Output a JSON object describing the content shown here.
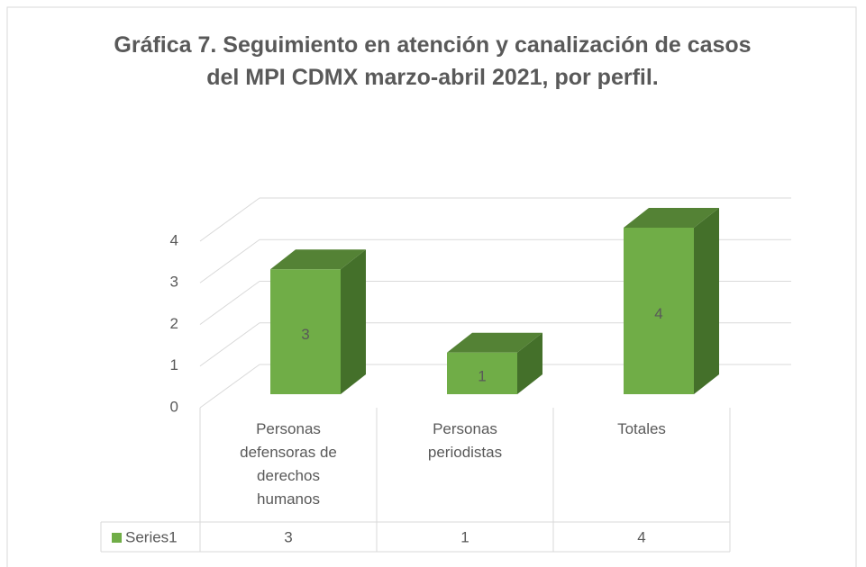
{
  "chart_data": {
    "type": "bar3d",
    "title": "Gráfica 7. Seguimiento en atención y canalización de casos del MPI CDMX marzo-abril 2021, por perfil.",
    "categories": [
      "Personas defensoras de derechos humanos",
      "Personas periodistas",
      "Totales"
    ],
    "series": [
      {
        "name": "Series1",
        "color": "#70ad47",
        "values": [
          3,
          1,
          4
        ]
      }
    ],
    "ylim": [
      0,
      4
    ],
    "yticks": [
      0,
      1,
      2,
      3,
      4
    ],
    "grid": true,
    "data_table": true
  }
}
